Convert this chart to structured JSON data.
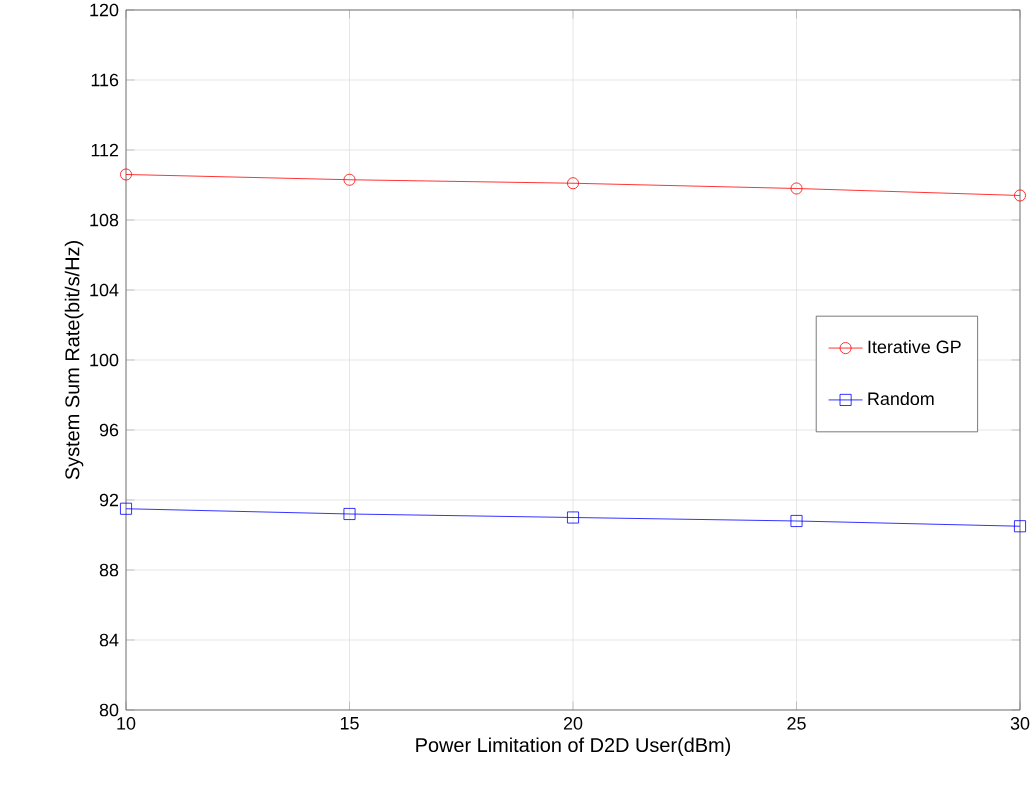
{
  "chart_data": {
    "type": "line",
    "xlabel": "Power Limitation of D2D User(dBm)",
    "ylabel": "System Sum Rate(bit/s/Hz)",
    "x": [
      10,
      15,
      20,
      25,
      30
    ],
    "series": [
      {
        "name": "Iterative GP",
        "color": "#ff0000",
        "marker": "circle",
        "values": [
          110.6,
          110.3,
          110.1,
          109.8,
          109.4
        ]
      },
      {
        "name": "Random",
        "color": "#0000ff",
        "marker": "square",
        "values": [
          91.5,
          91.2,
          91.0,
          90.8,
          90.5
        ]
      }
    ],
    "xlim": [
      10,
      30
    ],
    "xticks": [
      10,
      15,
      20,
      25,
      30
    ],
    "ylim": [
      80,
      120
    ],
    "yticks": [
      80,
      84,
      88,
      92,
      96,
      100,
      104,
      108,
      112,
      116,
      120
    ],
    "grid": true,
    "legend": "right",
    "line_style": "solid"
  }
}
